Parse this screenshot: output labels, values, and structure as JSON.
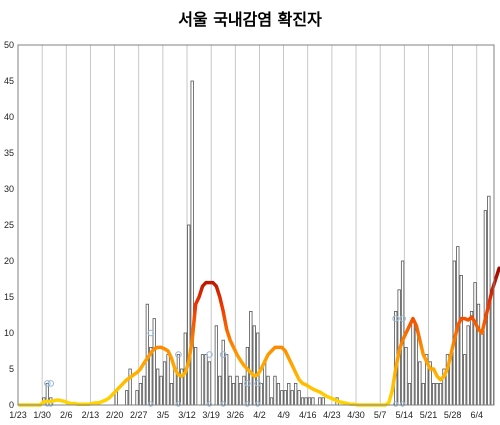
{
  "chart_data": {
    "type": "bar",
    "title": "서울 국내감염 확진자",
    "ylim": [
      0,
      50
    ],
    "y_ticks": [
      0,
      5,
      10,
      15,
      20,
      25,
      30,
      35,
      40,
      45,
      50
    ],
    "x_tick_labels": [
      "1/23",
      "1/30",
      "2/6",
      "2/13",
      "2/20",
      "2/27",
      "3/5",
      "3/12",
      "3/19",
      "3/26",
      "4/2",
      "4/9",
      "4/16",
      "4/23",
      "4/30",
      "5/7",
      "5/14",
      "5/21",
      "5/28",
      "6/4"
    ],
    "grid": "vertical",
    "x_start": "1/23",
    "series": [
      {
        "kind": "bar",
        "values": [
          0,
          0,
          0,
          0,
          0,
          0,
          0,
          1,
          3,
          1,
          0,
          0,
          0,
          0,
          0,
          0,
          0,
          0,
          0,
          0,
          0,
          0,
          0,
          0,
          0,
          0,
          0,
          0,
          2,
          0,
          0,
          2,
          5,
          0,
          2,
          3,
          4,
          14,
          8,
          12,
          5,
          4,
          6,
          7,
          3,
          5,
          7,
          5,
          10,
          25,
          45,
          8,
          0,
          7,
          7,
          6,
          0,
          11,
          4,
          9,
          7,
          4,
          3,
          4,
          3,
          4,
          8,
          13,
          11,
          10,
          3,
          6,
          4,
          1,
          4,
          3,
          2,
          2,
          3,
          2,
          3,
          2,
          1,
          1,
          1,
          1,
          0,
          1,
          1,
          0,
          0,
          0,
          1,
          0,
          0,
          0,
          0,
          0,
          0,
          0,
          0,
          0,
          0,
          0,
          0,
          0,
          0,
          0,
          0,
          13,
          16,
          20,
          8,
          3,
          12,
          11,
          6,
          3,
          7,
          6,
          3,
          3,
          3,
          5,
          7,
          7,
          20,
          22,
          18,
          7,
          11,
          13,
          17,
          14,
          10,
          27,
          29,
          16
        ]
      },
      {
        "kind": "line",
        "gradient": [
          "#ffd700",
          "#ff9900",
          "#ee3300",
          "#8b0000"
        ],
        "values": [
          0,
          0,
          0,
          0,
          0,
          0,
          0,
          0.5,
          0.5,
          0.5,
          0.6,
          0.7,
          0.6,
          0.5,
          0.3,
          0.2,
          0.2,
          0.1,
          0.1,
          0.1,
          0.1,
          0.2,
          0.3,
          0.3,
          0.5,
          0.7,
          1,
          1.5,
          2,
          2.5,
          3,
          3.5,
          3.8,
          4.2,
          4.5,
          5,
          5.8,
          6.5,
          7.2,
          7.8,
          8,
          8,
          7.8,
          7.5,
          6.5,
          5,
          4.2,
          4,
          4.5,
          6,
          9,
          14,
          15,
          16.5,
          17,
          17,
          17,
          16.5,
          15,
          13,
          10.5,
          9,
          8,
          7,
          6.2,
          5.5,
          5,
          4.5,
          4,
          4.2,
          5,
          6,
          7,
          7.5,
          8,
          8,
          8,
          7.5,
          6.5,
          5.5,
          4.5,
          3.5,
          3,
          2.8,
          2.5,
          2.2,
          2,
          1.8,
          1.5,
          1.2,
          1,
          0.8,
          0.6,
          0.4,
          0.3,
          0.2,
          0.1,
          0.1,
          0,
          0,
          0,
          0,
          0,
          0,
          0,
          0,
          0,
          0.3,
          2,
          5,
          7.5,
          9,
          10,
          11,
          12,
          11,
          9,
          7,
          6,
          5,
          5,
          4,
          3.5,
          4,
          5,
          7,
          9,
          11,
          12,
          12,
          11.8,
          12.2,
          11.5,
          10.5,
          10,
          12,
          14,
          16,
          17.5,
          19,
          19
        ]
      }
    ],
    "markers": [
      {
        "x": 8,
        "y": 3
      },
      {
        "x": 9,
        "y": 3
      },
      {
        "x": 38,
        "y": 10
      },
      {
        "x": 46,
        "y": 7
      },
      {
        "x": 55,
        "y": 7
      },
      {
        "x": 59,
        "y": 7
      },
      {
        "x": 66,
        "y": 3
      },
      {
        "x": 69,
        "y": 3
      },
      {
        "x": 109,
        "y": 12
      },
      {
        "x": 111,
        "y": 12
      }
    ],
    "colors": {
      "bar_stroke": "#555555",
      "grid": "#bbbbbb",
      "axis": "#808080",
      "marker": "#9ab7d3"
    }
  }
}
